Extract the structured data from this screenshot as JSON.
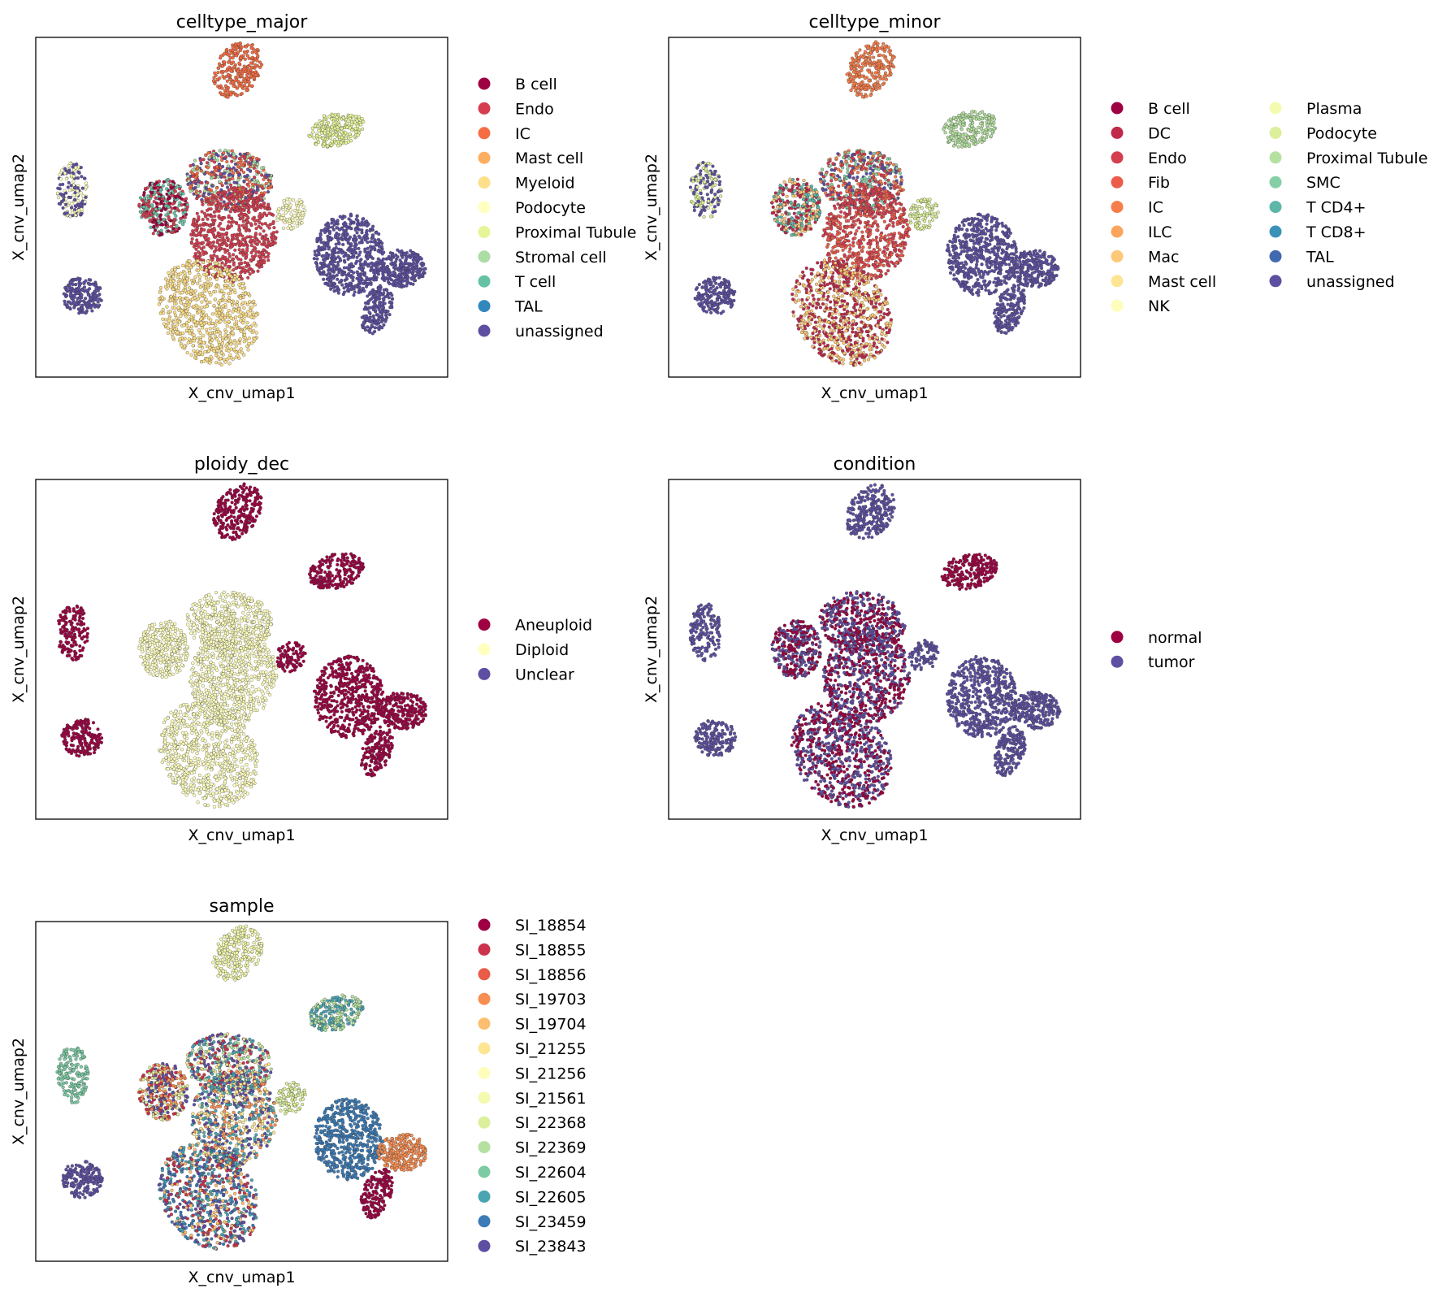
{
  "chart_data": [
    {
      "type": "scatter",
      "title": "celltype_major",
      "xlabel": "X_cnv_umap1",
      "ylabel": "X_cnv_umap2",
      "legend": {
        "placement": "right",
        "columns": 1,
        "entries": [
          {
            "label": "B cell",
            "color": "#9e0142"
          },
          {
            "label": "Endo",
            "color": "#d53e4f"
          },
          {
            "label": "IC",
            "color": "#f46d43"
          },
          {
            "label": "Mast cell",
            "color": "#fdae61"
          },
          {
            "label": "Myeloid",
            "color": "#fee08b"
          },
          {
            "label": "Podocyte",
            "color": "#ffffbf"
          },
          {
            "label": "Proximal Tubule",
            "color": "#e6f598"
          },
          {
            "label": "Stromal cell",
            "color": "#abdda4"
          },
          {
            "label": "T cell",
            "color": "#66c2a5"
          },
          {
            "label": "TAL",
            "color": "#3288bd"
          },
          {
            "label": "unassigned",
            "color": "#5e4fa2"
          }
        ]
      },
      "cluster_colors": {
        "top": [
          "#f46d43"
        ],
        "ne": [
          "#e6f598"
        ],
        "left_upper": [
          "#5e4fa2",
          "#ffffbf"
        ],
        "left_lower": [
          "#5e4fa2"
        ],
        "center_upper": [
          "#abdda4",
          "#d53e4f",
          "#f46d43",
          "#5e4fa2"
        ],
        "center_left": [
          "#66c2a5",
          "#9e0142",
          "#d53e4f"
        ],
        "center_red": [
          "#d53e4f"
        ],
        "center_lower": [
          "#fee08b"
        ],
        "small": [
          "#ffffbf"
        ],
        "right_big": [
          "#5e4fa2"
        ],
        "far_right": [
          "#5e4fa2"
        ],
        "right_lower": [
          "#5e4fa2"
        ]
      }
    },
    {
      "type": "scatter",
      "title": "celltype_minor",
      "xlabel": "X_cnv_umap1",
      "ylabel": "X_cnv_umap2",
      "legend": {
        "placement": "right",
        "columns": 2,
        "entries": [
          {
            "label": "B cell",
            "color": "#9e0142"
          },
          {
            "label": "DC",
            "color": "#c0294a"
          },
          {
            "label": "Endo",
            "color": "#d53e4f"
          },
          {
            "label": "Fib",
            "color": "#ec5c4a"
          },
          {
            "label": "IC",
            "color": "#f67e4b"
          },
          {
            "label": "ILC",
            "color": "#fba55c"
          },
          {
            "label": "Mac",
            "color": "#fdc877"
          },
          {
            "label": "Mast cell",
            "color": "#fee593"
          },
          {
            "label": "NK",
            "color": "#fffdbc"
          },
          {
            "label": "Plasma",
            "color": "#f4faae"
          },
          {
            "label": "Podocyte",
            "color": "#dcf09c"
          },
          {
            "label": "Proximal Tubule",
            "color": "#b5e1a0"
          },
          {
            "label": "SMC",
            "color": "#86cfa5"
          },
          {
            "label": "T CD4+",
            "color": "#5db7a9"
          },
          {
            "label": "T CD8+",
            "color": "#3a92b9"
          },
          {
            "label": "TAL",
            "color": "#4069af"
          },
          {
            "label": "unassigned",
            "color": "#5e4fa2"
          }
        ]
      },
      "cluster_colors": {
        "top": [
          "#f67e4b"
        ],
        "ne": [
          "#b5e1a0"
        ],
        "left_upper": [
          "#5e4fa2",
          "#dcf09c"
        ],
        "left_lower": [
          "#5e4fa2"
        ],
        "center_upper": [
          "#86cfa5",
          "#d53e4f",
          "#5e4fa2",
          "#f67e4b"
        ],
        "center_left": [
          "#5db7a9",
          "#fdc877",
          "#c0294a"
        ],
        "center_red": [
          "#d53e4f",
          "#ec5c4a"
        ],
        "center_lower": [
          "#fdc877",
          "#c0294a"
        ],
        "small": [
          "#dcf09c"
        ],
        "right_big": [
          "#5e4fa2"
        ],
        "far_right": [
          "#5e4fa2"
        ],
        "right_lower": [
          "#5e4fa2"
        ]
      }
    },
    {
      "type": "scatter",
      "title": "ploidy_dec",
      "xlabel": "X_cnv_umap1",
      "ylabel": "X_cnv_umap2",
      "legend": {
        "placement": "right",
        "columns": 1,
        "entries": [
          {
            "label": "Aneuploid",
            "color": "#9e0142"
          },
          {
            "label": "Diploid",
            "color": "#ffffbf"
          },
          {
            "label": "Unclear",
            "color": "#5e4fa2"
          }
        ]
      },
      "cluster_colors": {
        "top": [
          "#9e0142"
        ],
        "ne": [
          "#9e0142"
        ],
        "left_upper": [
          "#9e0142"
        ],
        "left_lower": [
          "#9e0142"
        ],
        "center_upper": [
          "#ffffbf"
        ],
        "center_left": [
          "#ffffbf"
        ],
        "center_red": [
          "#ffffbf"
        ],
        "center_lower": [
          "#ffffbf"
        ],
        "small": [
          "#9e0142"
        ],
        "right_big": [
          "#9e0142"
        ],
        "far_right": [
          "#9e0142"
        ],
        "right_lower": [
          "#9e0142"
        ]
      }
    },
    {
      "type": "scatter",
      "title": "condition",
      "xlabel": "X_cnv_umap1",
      "ylabel": "X_cnv_umap2",
      "legend": {
        "placement": "right",
        "columns": 1,
        "entries": [
          {
            "label": "normal",
            "color": "#9e0142"
          },
          {
            "label": "tumor",
            "color": "#5e4fa2"
          }
        ]
      },
      "cluster_colors": {
        "top": [
          "#5e4fa2"
        ],
        "ne": [
          "#9e0142"
        ],
        "left_upper": [
          "#5e4fa2"
        ],
        "left_lower": [
          "#5e4fa2"
        ],
        "center_upper": [
          "#5e4fa2",
          "#9e0142"
        ],
        "center_left": [
          "#9e0142",
          "#5e4fa2"
        ],
        "center_red": [
          "#5e4fa2",
          "#9e0142"
        ],
        "center_lower": [
          "#5e4fa2",
          "#9e0142"
        ],
        "small": [
          "#5e4fa2"
        ],
        "right_big": [
          "#5e4fa2"
        ],
        "far_right": [
          "#5e4fa2"
        ],
        "right_lower": [
          "#5e4fa2"
        ]
      }
    },
    {
      "type": "scatter",
      "title": "sample",
      "xlabel": "X_cnv_umap1",
      "ylabel": "X_cnv_umap2",
      "legend": {
        "placement": "right",
        "columns": 1,
        "entries": [
          {
            "label": "SI_18854",
            "color": "#9e0142"
          },
          {
            "label": "SI_18855",
            "color": "#cb334c"
          },
          {
            "label": "SI_18856",
            "color": "#e95c47"
          },
          {
            "label": "SI_19703",
            "color": "#f98e52"
          },
          {
            "label": "SI_19704",
            "color": "#fdbf6f"
          },
          {
            "label": "SI_21255",
            "color": "#fee593"
          },
          {
            "label": "SI_21256",
            "color": "#fffdbc"
          },
          {
            "label": "SI_21561",
            "color": "#f4faae"
          },
          {
            "label": "SI_22368",
            "color": "#dcf09c"
          },
          {
            "label": "SI_22369",
            "color": "#b5e1a0"
          },
          {
            "label": "SI_22604",
            "color": "#7dcba4"
          },
          {
            "label": "SI_22605",
            "color": "#4ba4b1"
          },
          {
            "label": "SI_23459",
            "color": "#3c7bb6"
          },
          {
            "label": "SI_23843",
            "color": "#5e4fa2"
          }
        ]
      },
      "cluster_colors": {
        "top": [
          "#f4faae"
        ],
        "ne": [
          "#4ba4b1",
          "#b5e1a0"
        ],
        "left_upper": [
          "#7dcba4"
        ],
        "left_lower": [
          "#5e4fa2"
        ],
        "center_upper": [
          "#5e4fa2",
          "#4ba4b1",
          "#fee593",
          "#cb334c",
          "#b5e1a0"
        ],
        "center_left": [
          "#dcf09c",
          "#cb334c",
          "#5e4fa2",
          "#f98e52"
        ],
        "center_red": [
          "#5e4fa2",
          "#4ba4b1",
          "#f98e52",
          "#fee593"
        ],
        "center_lower": [
          "#5e4fa2",
          "#4ba4b1",
          "#cb334c",
          "#fdbf6f",
          "#3c7bb6"
        ],
        "small": [
          "#dcf09c"
        ],
        "right_big": [
          "#3c7bb6"
        ],
        "far_right": [
          "#f98e52"
        ],
        "right_lower": [
          "#9e0142"
        ]
      }
    }
  ]
}
